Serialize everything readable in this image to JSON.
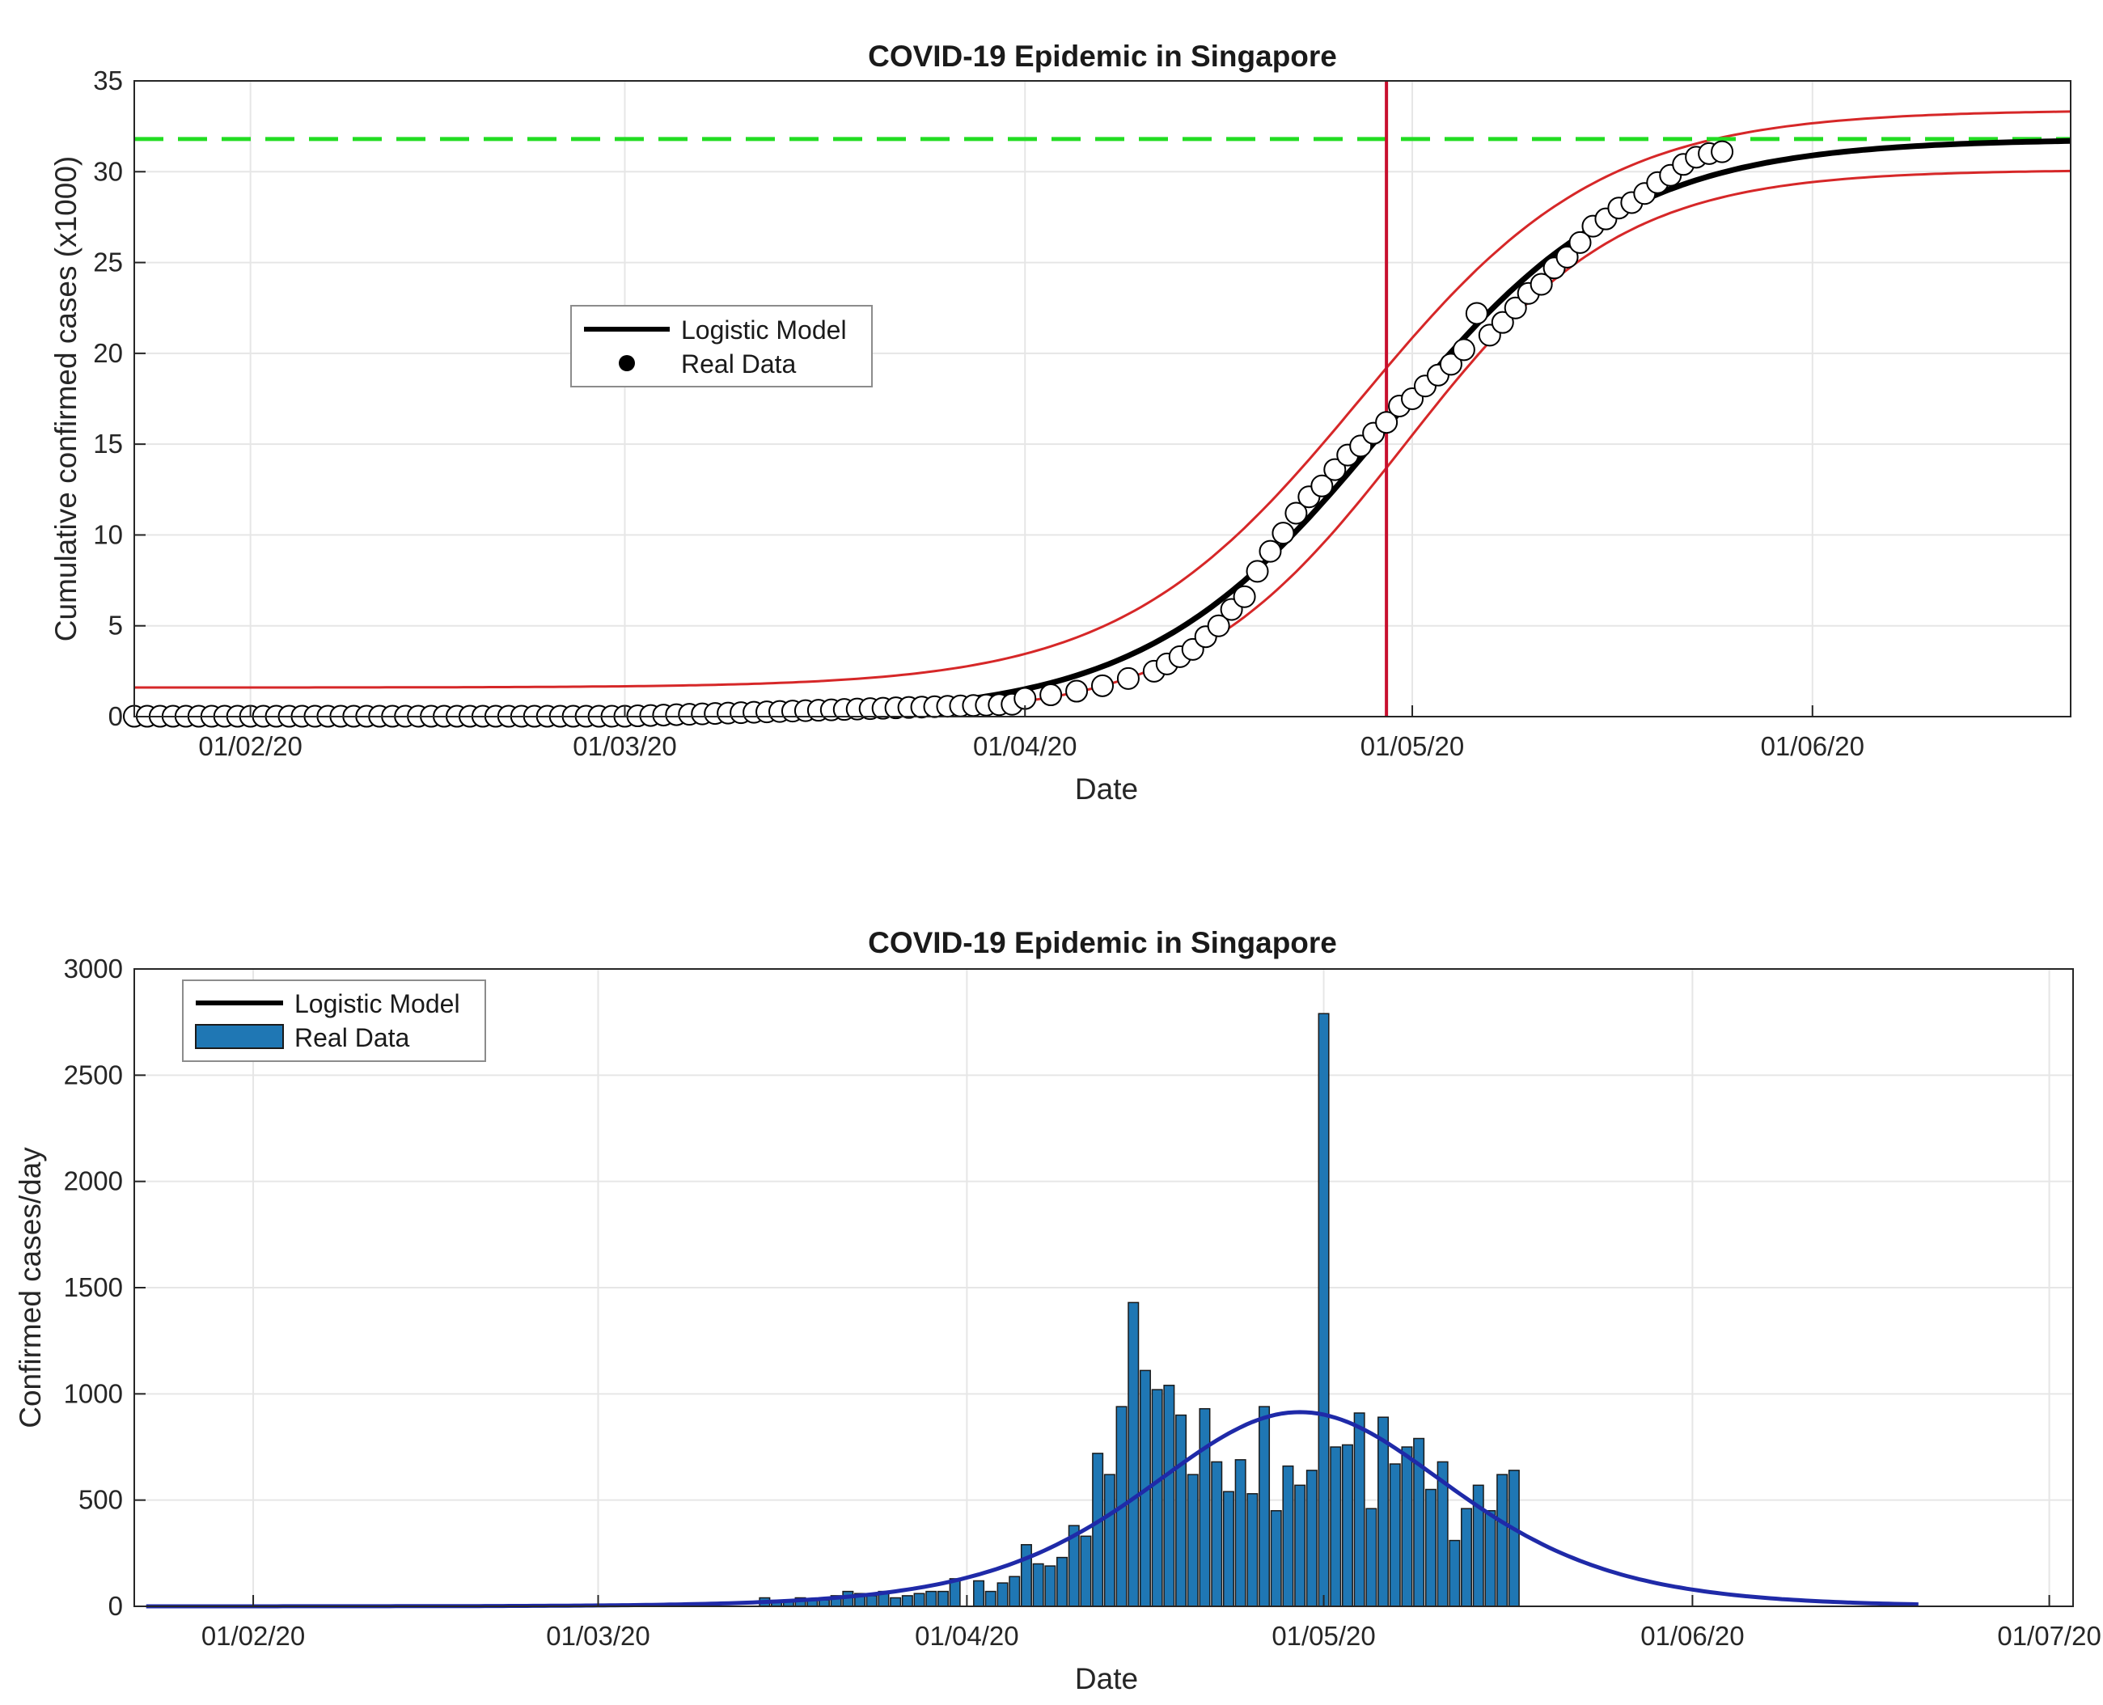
{
  "chart_data": [
    {
      "type": "line",
      "title": "COVID-19 Epidemic in Singapore",
      "xlabel": "Date",
      "ylabel": "Cumulative confirmed cases (x1000)",
      "xlim": [
        "2020-01-23",
        "2020-06-21"
      ],
      "ylim": [
        0,
        35
      ],
      "xticks": [
        {
          "date": "2020-02-01",
          "label": "01/02/20"
        },
        {
          "date": "2020-03-01",
          "label": "01/03/20"
        },
        {
          "date": "2020-04-01",
          "label": "01/04/20"
        },
        {
          "date": "2020-05-01",
          "label": "01/05/20"
        },
        {
          "date": "2020-06-01",
          "label": "01/06/20"
        }
      ],
      "yticks": [
        0,
        5,
        10,
        15,
        20,
        25,
        30,
        35
      ],
      "grid": true,
      "legend_placement": "upper-left-center",
      "legend": [
        {
          "label": "Logistic Model",
          "marker": "line",
          "color": "#000000"
        },
        {
          "label": "Real Data",
          "marker": "dot",
          "color": "#000000"
        }
      ],
      "logistic_fit": {
        "K": 31.8,
        "midpoint": "2020-04-29",
        "rate_per_day": 0.107,
        "lower_K": 30.1,
        "upper_K": 33.4
      },
      "saturation_level": 31.8,
      "inflection_date": "2020-04-29",
      "series": [
        {
          "name": "Real Data",
          "x": [
            "2020-04-01",
            "2020-04-03",
            "2020-04-05",
            "2020-04-07",
            "2020-04-09",
            "2020-04-11",
            "2020-04-12",
            "2020-04-13",
            "2020-04-14",
            "2020-04-15",
            "2020-04-16",
            "2020-04-17",
            "2020-04-18",
            "2020-04-19",
            "2020-04-20",
            "2020-04-21",
            "2020-04-22",
            "2020-04-23",
            "2020-04-24",
            "2020-04-25",
            "2020-04-26",
            "2020-04-27",
            "2020-04-28",
            "2020-04-29",
            "2020-04-30",
            "2020-05-01",
            "2020-05-02",
            "2020-05-03",
            "2020-05-04",
            "2020-05-05",
            "2020-05-06",
            "2020-05-07",
            "2020-05-08",
            "2020-05-09",
            "2020-05-10",
            "2020-05-11",
            "2020-05-12",
            "2020-05-13",
            "2020-05-14",
            "2020-05-15",
            "2020-05-16",
            "2020-05-17",
            "2020-05-18",
            "2020-05-19",
            "2020-05-20",
            "2020-05-21",
            "2020-05-22",
            "2020-05-23",
            "2020-05-24",
            "2020-05-25"
          ],
          "y": [
            1.0,
            1.2,
            1.4,
            1.7,
            2.1,
            2.5,
            2.9,
            3.3,
            3.7,
            4.4,
            5.0,
            5.9,
            6.6,
            8.0,
            9.1,
            10.1,
            11.2,
            12.1,
            12.7,
            13.6,
            14.4,
            14.9,
            15.6,
            16.2,
            17.1,
            17.5,
            18.2,
            18.8,
            19.4,
            20.2,
            22.2,
            21.0,
            21.7,
            22.5,
            23.3,
            23.8,
            24.7,
            25.3,
            26.1,
            27.0,
            27.4,
            28.0,
            28.3,
            28.8,
            29.4,
            29.8,
            30.4,
            30.8,
            31.0,
            31.1
          ]
        }
      ]
    },
    {
      "type": "bar",
      "title": "COVID-19 Epidemic in Singapore",
      "xlabel": "Date",
      "ylabel": "Confirmed cases/day",
      "xlim": [
        "2020-01-22",
        "2020-07-03"
      ],
      "ylim": [
        0,
        3000
      ],
      "xticks": [
        {
          "date": "2020-02-01",
          "label": "01/02/20"
        },
        {
          "date": "2020-03-01",
          "label": "01/03/20"
        },
        {
          "date": "2020-04-01",
          "label": "01/04/20"
        },
        {
          "date": "2020-05-01",
          "label": "01/05/20"
        },
        {
          "date": "2020-06-01",
          "label": "01/06/20"
        },
        {
          "date": "2020-07-01",
          "label": "01/07/20"
        }
      ],
      "yticks": [
        0,
        500,
        1000,
        1500,
        2000,
        2500,
        3000
      ],
      "grid": true,
      "legend_placement": "top-left",
      "legend": [
        {
          "label": "Logistic Model",
          "marker": "line",
          "color": "#000000"
        },
        {
          "label": "Real Data",
          "marker": "bar",
          "color": "#1f77b4"
        }
      ],
      "model_curve": {
        "color": "#1f2aa8",
        "K": 31800,
        "midpoint": "2020-04-29",
        "rate_per_day": 0.115,
        "start": "2020-01-23",
        "end": "2020-06-20"
      },
      "series": [
        {
          "name": "Real Data",
          "start_date": "2020-03-15",
          "values": [
            40,
            20,
            30,
            40,
            30,
            30,
            50,
            70,
            60,
            50,
            70,
            40,
            50,
            60,
            70,
            70,
            130,
            0,
            120,
            70,
            110,
            140,
            290,
            200,
            190,
            230,
            380,
            330,
            720,
            620,
            940,
            1430,
            1110,
            1020,
            1040,
            900,
            620,
            930,
            680,
            540,
            690,
            530,
            940,
            450,
            660,
            570,
            640,
            2790,
            750,
            760,
            910,
            460,
            890,
            670,
            750,
            790,
            550,
            680,
            310,
            460,
            570,
            450,
            620,
            640
          ]
        }
      ]
    }
  ]
}
